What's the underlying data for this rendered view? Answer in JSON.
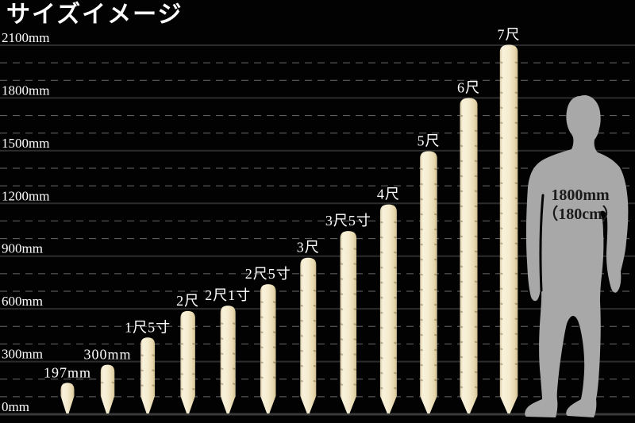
{
  "title": "サイズイメージ",
  "chart_data": {
    "type": "bar",
    "title": "サイズイメージ",
    "categories": [
      "197mm",
      "300mm",
      "1尺5寸",
      "2尺",
      "2尺1寸",
      "2尺5寸",
      "3尺",
      "3尺5寸",
      "4尺",
      "5尺",
      "6尺",
      "7尺"
    ],
    "values": [
      197,
      300,
      455,
      606,
      636,
      758,
      909,
      1061,
      1212,
      1515,
      1818,
      2121
    ],
    "unit": "mm",
    "xlabel": "",
    "ylabel": "",
    "axis": {
      "ymax": 2100,
      "ylim": [
        0,
        2230
      ],
      "solid_step": 300,
      "dashed_step": 100,
      "ticks": [
        "0mm",
        "300mm",
        "600mm",
        "900mm",
        "1200mm",
        "1500mm",
        "1800mm",
        "2100mm"
      ],
      "tick_values": [
        0,
        300,
        600,
        900,
        1200,
        1500,
        1800,
        2100
      ]
    },
    "grid": "on",
    "legend": "none",
    "bar_style": "wooden stake with rounded top and pointed bottom"
  },
  "person": {
    "label_line1": "1800mm",
    "label_line2": "（180cm）",
    "height_mm": 1800
  },
  "colors": {
    "background": "#020202",
    "bar_fill": "#f5ecd0",
    "bar_edge": "#d9c893",
    "grid_solid": "#2c2c2c",
    "grid_baseline": "#3a3a3a",
    "grid_dashed": "#6a6a6a",
    "label_text": "#ffffff",
    "person_fill": "#a8a8a8",
    "person_text": "#1b1b1b"
  }
}
